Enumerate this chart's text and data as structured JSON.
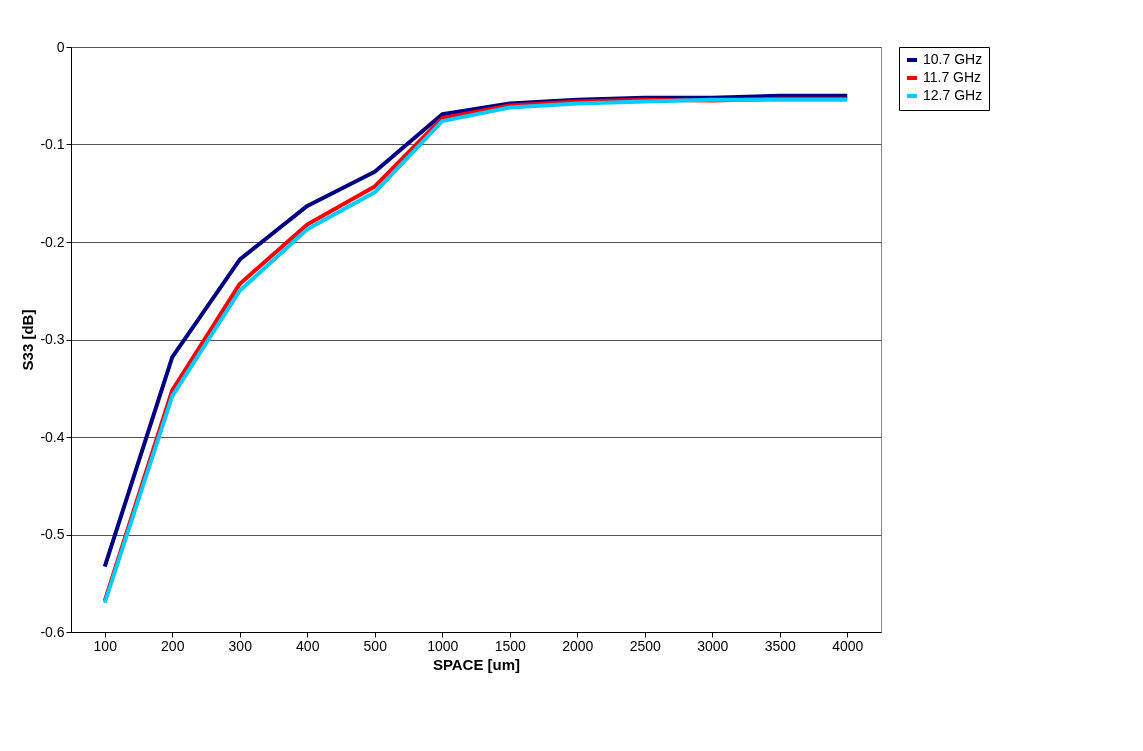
{
  "chart_data": {
    "type": "line",
    "xlabel": "SPACE [um]",
    "ylabel": "S33 [dB]",
    "categories": [
      "100",
      "200",
      "300",
      "400",
      "500",
      "1000",
      "1500",
      "2000",
      "2500",
      "3000",
      "3500",
      "4000"
    ],
    "series": [
      {
        "name": "10.7 GHz",
        "color": "#000080",
        "values": [
          -0.533,
          -0.318,
          -0.218,
          -0.163,
          -0.128,
          -0.069,
          -0.058,
          -0.054,
          -0.052,
          -0.052,
          -0.05,
          -0.05
        ]
      },
      {
        "name": "11.7 GHz",
        "color": "#ff0000",
        "values": [
          -0.568,
          -0.352,
          -0.243,
          -0.182,
          -0.143,
          -0.073,
          -0.06,
          -0.056,
          -0.054,
          -0.055,
          -0.053,
          -0.053
        ]
      },
      {
        "name": "12.7 GHz",
        "color": "#00ccff",
        "values": [
          -0.57,
          -0.358,
          -0.25,
          -0.187,
          -0.149,
          -0.076,
          -0.062,
          -0.058,
          -0.056,
          -0.054,
          -0.054,
          -0.054
        ]
      }
    ],
    "ylim": [
      -0.6,
      0
    ],
    "yticks": [
      -0.6,
      -0.5,
      -0.4,
      -0.3,
      -0.2,
      -0.1,
      0
    ],
    "grid": "y",
    "legend": "right",
    "marker": "none",
    "line_style": "solid"
  }
}
